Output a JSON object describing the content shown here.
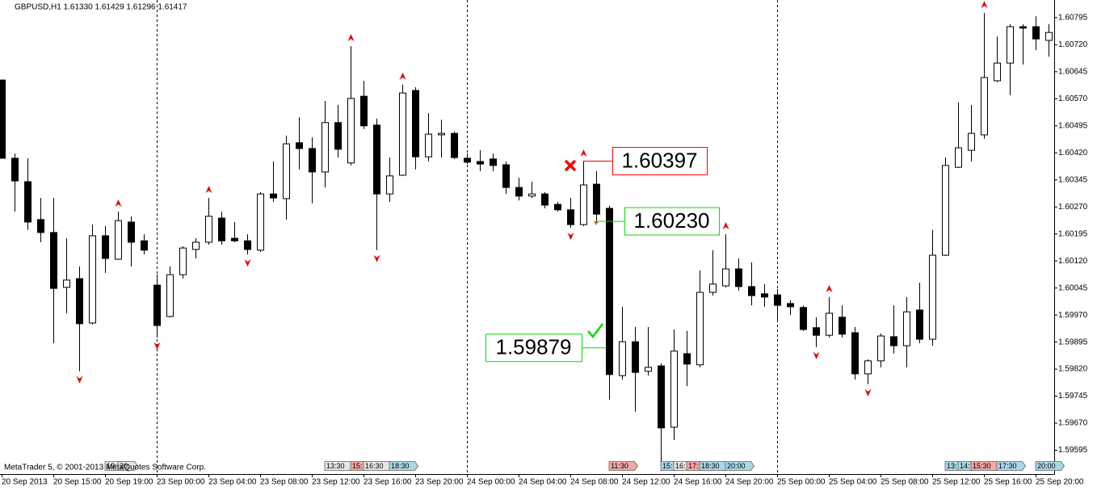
{
  "chart_data": {
    "type": "candlestick",
    "title": "GBPUSD,H1  1.61330 1.61429 1.61296 1.61417",
    "footer": "MetaTrader 5, © 2001-2013 MetaQuotes Software Corp.",
    "categories": [
      "20 Sep 2013",
      null,
      null,
      null,
      "20 Sep 15:00",
      null,
      null,
      null,
      "20 Sep 19:00",
      null,
      null,
      null,
      "23 Sep 00:00",
      null,
      null,
      null,
      "23 Sep 04:00",
      null,
      null,
      null,
      "23 Sep 08:00",
      null,
      null,
      null,
      "23 Sep 12:00",
      null,
      null,
      null,
      "23 Sep 16:00",
      null,
      null,
      null,
      "23 Sep 20:00",
      null,
      null,
      null,
      "24 Sep 00:00",
      null,
      null,
      null,
      "24 Sep 04:00",
      null,
      null,
      null,
      "24 Sep 08:00",
      null,
      null,
      null,
      "24 Sep 12:00",
      null,
      null,
      null,
      "24 Sep 16:00",
      null,
      null,
      null,
      "24 Sep 20:00",
      null,
      null,
      null,
      "25 Sep 00:00",
      null,
      null,
      null,
      "25 Sep 04:00",
      null,
      null,
      null,
      "25 Sep 08:00",
      null,
      null,
      null,
      "25 Sep 12:00",
      null,
      null,
      null,
      "25 Sep 16:00",
      null,
      null,
      null,
      "25 Sep 20:00",
      null
    ],
    "open": [
      1.60622,
      1.60405,
      1.6034,
      1.60235,
      1.60199,
      1.60047,
      1.60071,
      1.59948,
      1.6019,
      1.60125,
      1.60228,
      1.60176,
      1.60053,
      1.59966,
      1.60082,
      1.60152,
      1.60172,
      1.60239,
      1.60183,
      1.60176,
      1.6015,
      1.60306,
      1.60293,
      1.60448,
      1.60432,
      1.60367,
      1.60504,
      1.60392,
      1.60577,
      1.60497,
      1.60306,
      1.60358,
      1.60593,
      1.60409,
      1.6047,
      1.60474,
      1.60405,
      1.60396,
      1.60403,
      1.60387,
      1.60324,
      1.603,
      1.60306,
      1.60277,
      1.60262,
      1.60221,
      1.60333,
      1.60266,
      1.59802,
      1.59896,
      1.59814,
      1.59829,
      1.59659,
      1.59863,
      1.59832,
      1.60033,
      1.60051,
      1.60098,
      1.60049,
      1.60029,
      1.60026,
      1.60002,
      1.59991,
      1.59935,
      1.59914,
      1.59964,
      1.59921,
      1.59807,
      1.59843,
      1.5991,
      1.59885,
      1.59984,
      1.59903,
      1.60136,
      1.6038,
      1.60427,
      1.6047,
      1.6062,
      1.60669,
      1.6077,
      1.6077,
      1.60732
    ],
    "high": [
      1.60622,
      1.60418,
      1.60405,
      1.60295,
      1.60295,
      1.60183,
      1.60105,
      1.60221,
      1.60217,
      1.60257,
      1.60244,
      1.60194,
      1.60082,
      1.60105,
      1.60161,
      1.60183,
      1.60295,
      1.60257,
      1.60228,
      1.60194,
      1.60311,
      1.60396,
      1.60468,
      1.60519,
      1.60463,
      1.60564,
      1.60553,
      1.60716,
      1.6062,
      1.60515,
      1.60407,
      1.60609,
      1.60602,
      1.6053,
      1.60512,
      1.60479,
      1.60418,
      1.60427,
      1.60418,
      1.60396,
      1.60351,
      1.6034,
      1.60311,
      1.60284,
      1.60295,
      1.60396,
      1.60369,
      1.60273,
      1.59993,
      1.59937,
      1.59937,
      1.59836,
      1.5993,
      1.59926,
      1.60094,
      1.6015,
      1.60194,
      1.60127,
      1.60116,
      1.60056,
      1.60042,
      1.60011,
      1.59997,
      1.59964,
      1.6002,
      1.59997,
      1.59937,
      1.59847,
      1.59919,
      1.59997,
      1.6002,
      1.6006,
      1.60206,
      1.60407,
      1.6056,
      1.60553,
      1.60808,
      1.60743,
      1.60777,
      1.60777,
      1.60799,
      1.60777
    ],
    "low": [
      1.60405,
      1.60257,
      1.60206,
      1.60172,
      1.59892,
      1.59975,
      1.59814,
      1.59944,
      1.60087,
      1.60123,
      1.60105,
      1.60138,
      1.59908,
      1.59964,
      1.60071,
      1.60127,
      1.60165,
      1.60165,
      1.60172,
      1.60138,
      1.60145,
      1.60284,
      1.60235,
      1.60374,
      1.6028,
      1.60324,
      1.60407,
      1.60385,
      1.60486,
      1.6015,
      1.60284,
      1.60356,
      1.60374,
      1.60396,
      1.60407,
      1.60403,
      1.60389,
      1.60369,
      1.60369,
      1.60306,
      1.60288,
      1.60295,
      1.60266,
      1.60257,
      1.60212,
      1.60217,
      1.60228,
      1.59735,
      1.59791,
      1.59702,
      1.59802,
      1.59545,
      1.59623,
      1.59773,
      1.59825,
      1.60024,
      1.60047,
      1.60038,
      1.59997,
      1.59993,
      1.59952,
      1.5997,
      1.59926,
      1.59881,
      1.59908,
      1.59908,
      1.59791,
      1.59778,
      1.59825,
      1.59863,
      1.59825,
      1.59892,
      1.59885,
      1.60134,
      1.60378,
      1.60396,
      1.60459,
      1.60616,
      1.6058,
      1.60665,
      1.60705,
      1.60687
    ],
    "close": [
      1.60405,
      1.60342,
      1.60228,
      1.60199,
      1.60044,
      1.60067,
      1.59946,
      1.6019,
      1.60127,
      1.60232,
      1.60172,
      1.6015,
      1.59941,
      1.60082,
      1.60156,
      1.60172,
      1.60244,
      1.60176,
      1.60176,
      1.60152,
      1.60306,
      1.60295,
      1.60445,
      1.60432,
      1.60367,
      1.60504,
      1.6043,
      1.60571,
      1.60495,
      1.60306,
      1.60356,
      1.60586,
      1.60409,
      1.60472,
      1.60474,
      1.60407,
      1.60394,
      1.60389,
      1.60385,
      1.60324,
      1.603,
      1.60306,
      1.60275,
      1.60262,
      1.60221,
      1.60331,
      1.6025,
      1.59805,
      1.59896,
      1.59811,
      1.59825,
      1.59657,
      1.5987,
      1.59834,
      1.60033,
      1.60056,
      1.60098,
      1.60049,
      1.60024,
      1.6002,
      1.59997,
      1.59993,
      1.5993,
      1.59914,
      1.59975,
      1.59917,
      1.59807,
      1.59843,
      1.59912,
      1.59885,
      1.59979,
      1.59903,
      1.60136,
      1.60385,
      1.60434,
      1.60474,
      1.60629,
      1.60669,
      1.6077,
      1.60766,
      1.60736,
      1.60754
    ],
    "ylim": [
      1.59529,
      1.60844
    ],
    "yticks": [
      1.60795,
      {
        "value": 1.6072,
        "label": "1.60720"
      },
      1.60645,
      {
        "value": 1.6057,
        "label": "1.60570"
      },
      1.60495,
      {
        "value": 1.6042,
        "label": "1.60420"
      },
      1.60345,
      {
        "value": 1.6027,
        "label": "1.60270"
      },
      1.60195,
      {
        "value": 1.6012,
        "label": "1.60120"
      },
      1.60045,
      {
        "value": 1.5997,
        "label": "1.59970"
      },
      1.59895,
      {
        "value": 1.5982,
        "label": "1.59820"
      },
      1.59745,
      {
        "value": 1.5967,
        "label": "1.59670"
      },
      1.59595
    ],
    "annotations": [
      {
        "value": 1.60397,
        "label": "1.60397",
        "color": "#ff0000"
      },
      {
        "value": 1.6023,
        "label": "1.60230",
        "color": "#00e000"
      },
      {
        "value": 1.59879,
        "label": "1.59879",
        "color": "#00e000"
      }
    ],
    "events": [
      {
        "label": "19:",
        "color": "#e6e6e6"
      },
      {
        "label": "20:",
        "color": "#e6e6e6"
      },
      {
        "label": "13:30",
        "color": "#e6e6e6"
      },
      {
        "label": "15:",
        "color": "#f4a6a6"
      },
      {
        "label": "16:30",
        "color": "#e6e6e6"
      },
      {
        "label": "18:30",
        "color": "#a8d8e8"
      },
      {
        "label": "11:30",
        "color": "#f4a6a6"
      },
      {
        "label": "15:",
        "color": "#a8d8e8"
      },
      {
        "label": "16:",
        "color": "#e6e6e6"
      },
      {
        "label": "17:",
        "color": "#f4a6a6"
      },
      {
        "label": "18:30",
        "color": "#a8d8e8"
      },
      {
        "label": "20:00",
        "color": "#a8d8e8"
      },
      {
        "label": "13:",
        "color": "#a8d8e8"
      },
      {
        "label": "14:",
        "color": "#a8d8e8"
      },
      {
        "label": "15:30",
        "color": "#f4a6a6"
      },
      {
        "label": "17:30",
        "color": "#a8d8e8"
      },
      {
        "label": "20:00",
        "color": "#a8d8e8"
      }
    ],
    "bull_color": "#ffffff",
    "bear_color": "#000000",
    "fractal_color": "#e00000"
  }
}
